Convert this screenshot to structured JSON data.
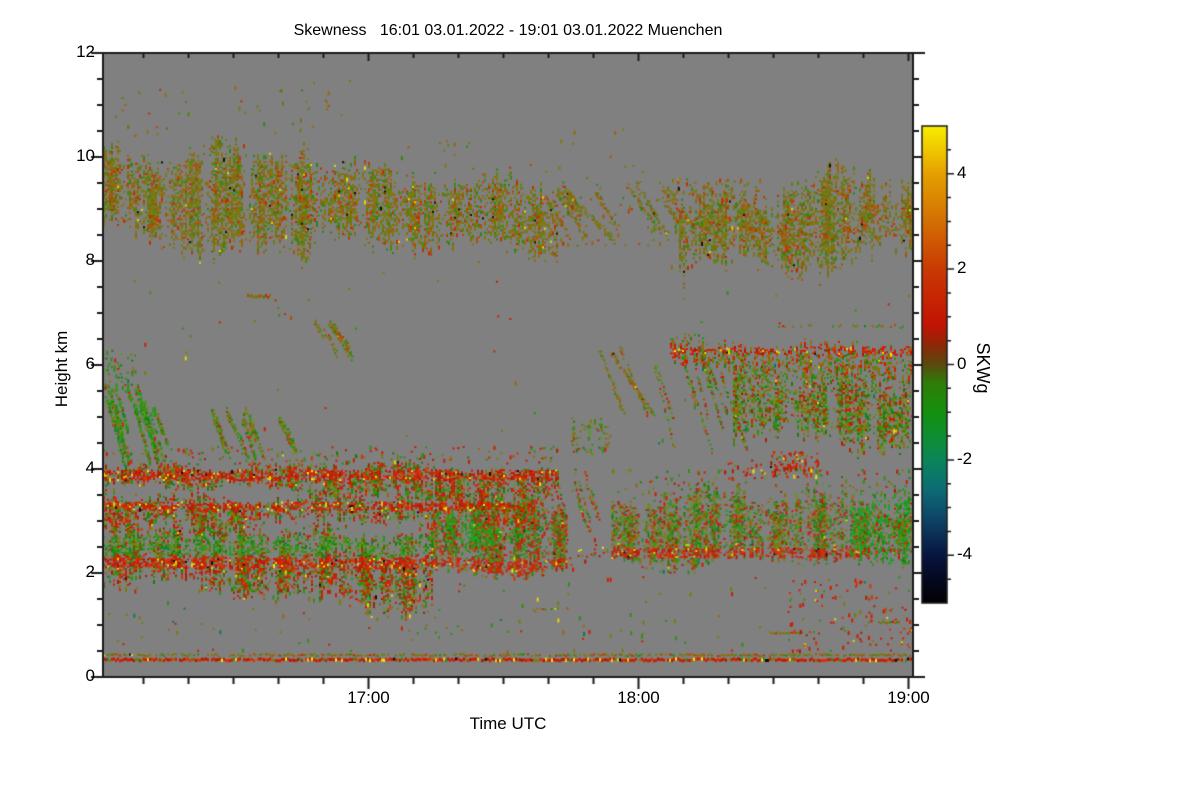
{
  "chart_data": {
    "type": "heatmap",
    "title": "Skewness   16:01 03.01.2022 - 19:01 03.01.2022 Muenchen",
    "xlabel": "Time UTC",
    "ylabel": "Height km",
    "background": "#808080",
    "frame_color": "#1c1c1c",
    "x_start": "16:01",
    "x_end": "19:01",
    "x_range_minutes": [
      0,
      180
    ],
    "x_ticks": [
      {
        "label": "17:00",
        "minutes": 59
      },
      {
        "label": "18:00",
        "minutes": 119
      },
      {
        "label": "19:00",
        "minutes": 179
      }
    ],
    "x_minor_start_min": 9,
    "x_minor_step_min": 10,
    "y_range_km": [
      0,
      12
    ],
    "y_ticks": [
      {
        "label": "0",
        "value": 0
      },
      {
        "label": "2",
        "value": 2
      },
      {
        "label": "4",
        "value": 4
      },
      {
        "label": "6",
        "value": 6
      },
      {
        "label": "8",
        "value": 8
      },
      {
        "label": "10",
        "value": 10
      },
      {
        "label": "12",
        "value": 12
      }
    ],
    "y_minor_step": 0.5,
    "colorbar": {
      "label": "SKWg",
      "range": [
        -5,
        5
      ],
      "ticks": [
        {
          "label": "4",
          "value": 4
        },
        {
          "label": "2",
          "value": 2
        },
        {
          "label": "0",
          "value": 0
        },
        {
          "label": "-2",
          "value": -2
        },
        {
          "label": "-4",
          "value": -4
        }
      ],
      "minor_step": 0.5,
      "stops": [
        [
          "#f6ee00",
          5.0
        ],
        [
          "#ecb800",
          4.3
        ],
        [
          "#e5a000",
          4.0
        ],
        [
          "#d67a04",
          3.2
        ],
        [
          "#cf5403",
          2.5
        ],
        [
          "#ca3a03",
          2.0
        ],
        [
          "#c62203",
          1.3
        ],
        [
          "#c01404",
          0.8
        ],
        [
          "#8c2808",
          0.4
        ],
        [
          "#5a4a10",
          0.0
        ],
        [
          "#2f7e08",
          -0.4
        ],
        [
          "#14900f",
          -1.0
        ],
        [
          "#0e8e38",
          -1.6
        ],
        [
          "#0b8559",
          -2.0
        ],
        [
          "#0d6d75",
          -2.6
        ],
        [
          "#0e4769",
          -3.2
        ],
        [
          "#081540",
          -4.0
        ],
        [
          "#04071a",
          -4.6
        ],
        [
          "#020203",
          -5.0
        ]
      ]
    },
    "palettes": {
      "cirrus": [
        [
          "#7d7a10",
          0.3
        ],
        [
          "#6e7414",
          0.14
        ],
        [
          "#9a660a",
          0.16
        ],
        [
          "#b04e06",
          0.1
        ],
        [
          "#c22e04",
          0.08
        ],
        [
          "#4e8a0c",
          0.1
        ],
        [
          "#2f8614",
          0.09
        ],
        [
          "#e4d400",
          0.008
        ],
        [
          "#12100a",
          0.006
        ]
      ],
      "redgreen": [
        [
          "#cc1e02",
          0.26
        ],
        [
          "#d43202",
          0.08
        ],
        [
          "#a82002",
          0.1
        ],
        [
          "#2e9012",
          0.2
        ],
        [
          "#1f7c0a",
          0.1
        ],
        [
          "#7d7a10",
          0.14
        ],
        [
          "#a85c08",
          0.07
        ],
        [
          "#e4d400",
          0.012
        ],
        [
          "#0c7a5a",
          0.008
        ],
        [
          "#12100a",
          0.004
        ],
        [
          "#57a010",
          0.026
        ]
      ],
      "redgreen2": [
        [
          "#cc1e02",
          0.16
        ],
        [
          "#a82002",
          0.06
        ],
        [
          "#2e9012",
          0.24
        ],
        [
          "#1f7c0a",
          0.12
        ],
        [
          "#57a010",
          0.08
        ],
        [
          "#7d7a10",
          0.22
        ],
        [
          "#9a660a",
          0.08
        ],
        [
          "#b04e06",
          0.03
        ],
        [
          "#e4d400",
          0.006
        ],
        [
          "#0c7a5a",
          0.008
        ]
      ],
      "green": [
        [
          "#2e9012",
          0.34
        ],
        [
          "#249e16",
          0.16
        ],
        [
          "#1f7c0a",
          0.16
        ],
        [
          "#57a010",
          0.1
        ],
        [
          "#7d7a10",
          0.12
        ],
        [
          "#cc1e02",
          0.08
        ],
        [
          "#0c7a5a",
          0.03
        ]
      ],
      "greenbright": [
        [
          "#18a01a",
          0.3
        ],
        [
          "#2e9012",
          0.3
        ],
        [
          "#0fae28",
          0.12
        ],
        [
          "#1f7c0a",
          0.12
        ],
        [
          "#7d7a10",
          0.08
        ],
        [
          "#cc1e02",
          0.06
        ]
      ],
      "greenolive": [
        [
          "#2e9012",
          0.25
        ],
        [
          "#1f7c0a",
          0.12
        ],
        [
          "#7d7a10",
          0.3
        ],
        [
          "#9a660a",
          0.12
        ],
        [
          "#cc1e02",
          0.12
        ],
        [
          "#57a010",
          0.09
        ]
      ],
      "red": [
        [
          "#cc1e02",
          0.42
        ],
        [
          "#d83402",
          0.18
        ],
        [
          "#a81c02",
          0.16
        ],
        [
          "#7d7a10",
          0.08
        ],
        [
          "#e4d400",
          0.05
        ],
        [
          "#2e9012",
          0.06
        ],
        [
          "#12100a",
          0.01
        ],
        [
          "#f0e800",
          0.02
        ]
      ],
      "redline": [
        [
          "#cc1e02",
          0.5
        ],
        [
          "#d83402",
          0.15
        ],
        [
          "#a81c02",
          0.12
        ],
        [
          "#7d7a10",
          0.09
        ],
        [
          "#e4d400",
          0.05
        ],
        [
          "#2e9012",
          0.05
        ],
        [
          "#12100a",
          0.02
        ],
        [
          "#f2ee00",
          0.02
        ]
      ],
      "cirrusred": [
        [
          "#7d7a10",
          0.25
        ],
        [
          "#9a660a",
          0.15
        ],
        [
          "#cc1e02",
          0.18
        ],
        [
          "#b04e06",
          0.1
        ],
        [
          "#2e9012",
          0.18
        ],
        [
          "#1f7c0a",
          0.08
        ],
        [
          "#e4d400",
          0.01
        ],
        [
          "#0c7a5a",
          0.01
        ]
      ],
      "mixsparse": [
        [
          "#7d7a10",
          0.35
        ],
        [
          "#2e9012",
          0.25
        ],
        [
          "#cc1e02",
          0.2
        ],
        [
          "#9a660a",
          0.1
        ],
        [
          "#0c7a5a",
          0.05
        ],
        [
          "#e4d400",
          0.05
        ]
      ],
      "redsparse": [
        [
          "#cc1e02",
          0.5
        ],
        [
          "#d83402",
          0.15
        ],
        [
          "#2e9012",
          0.12
        ],
        [
          "#7d7a10",
          0.13
        ],
        [
          "#e4d400",
          0.05
        ],
        [
          "#a81c02",
          0.05
        ]
      ]
    },
    "regions": [
      {
        "kind": "band",
        "t": [
          0,
          46
        ],
        "top": [
          10.35,
          10.15
        ],
        "bot": [
          8.5,
          8.2
        ],
        "density": 0.82,
        "palette": "cirrus",
        "wobble": 0.35,
        "feather": 0.55
      },
      {
        "kind": "band",
        "t": [
          46,
          101
        ],
        "top": [
          10.15,
          9.3
        ],
        "bot": [
          8.2,
          8.3
        ],
        "density": 0.8,
        "palette": "cirrus",
        "wobble": 0.3,
        "feather": 0.55
      },
      {
        "kind": "streaks",
        "t": [
          98,
          128
        ],
        "h": [
          8.4,
          9.5
        ],
        "count": 12,
        "len": 0.8,
        "slope": -0.12,
        "thick": 3,
        "density": 0.5,
        "palette": "cirrus"
      },
      {
        "kind": "band",
        "t": [
          128,
          180
        ],
        "top": [
          9.25,
          9.6
        ],
        "bot": [
          8.05,
          8.1
        ],
        "density": 0.85,
        "palette": "cirrus",
        "wobble": 0.45,
        "feather": 0.6
      },
      {
        "kind": "speckle",
        "t": [
          0,
          55
        ],
        "h": [
          10.3,
          11.55
        ],
        "density": 0.012,
        "palette": "cirrus"
      },
      {
        "kind": "speckle",
        "t": [
          55,
          130
        ],
        "h": [
          9.4,
          10.6
        ],
        "density": 0.006,
        "palette": "cirrus"
      },
      {
        "kind": "speckle",
        "t": [
          126,
          146
        ],
        "h": [
          8.3,
          9.6
        ],
        "density": 0.1,
        "palette": "cirrus"
      },
      {
        "kind": "speckle",
        "t": [
          101,
          126
        ],
        "h": [
          8.3,
          9.3
        ],
        "density": 0.035,
        "palette": "cirrus"
      },
      {
        "kind": "hline",
        "t": [
          32,
          37
        ],
        "h": 7.32,
        "thick": 3,
        "density": 0.9,
        "palette": "cirrus"
      },
      {
        "kind": "streaks",
        "t": [
          47,
          57
        ],
        "h": [
          6.2,
          6.9
        ],
        "count": 5,
        "len": 0.5,
        "slope": -0.15,
        "thick": 3,
        "density": 0.5,
        "palette": "cirrus"
      },
      {
        "kind": "speckle",
        "t": [
          38,
          46
        ],
        "h": [
          6.9,
          7.3
        ],
        "density": 0.03,
        "palette": "cirrus"
      },
      {
        "kind": "streaks",
        "t": [
          0,
          11
        ],
        "h": [
          3.9,
          5.6
        ],
        "count": 14,
        "len": 1.0,
        "slope": -0.28,
        "thick": 4,
        "density": 0.75,
        "palette": "green"
      },
      {
        "kind": "streaks",
        "t": [
          24,
          40
        ],
        "h": [
          4.2,
          5.2
        ],
        "count": 10,
        "len": 0.7,
        "slope": -0.22,
        "thick": 4,
        "density": 0.6,
        "palette": "greenolive"
      },
      {
        "kind": "speckle",
        "t": [
          0,
          7
        ],
        "h": [
          5.5,
          6.3
        ],
        "density": 0.15,
        "palette": "green"
      },
      {
        "kind": "band",
        "t": [
          0,
          101
        ],
        "top": [
          4.15,
          4.0
        ],
        "bot": [
          3.62,
          3.45
        ],
        "density": 0.85,
        "palette": "redgreen",
        "wobble": 0.15,
        "feather": 0.15,
        "stripes": [
          {
            "h": 3.9,
            "hw": 0.1,
            "palette": "red",
            "density": 0.95
          }
        ]
      },
      {
        "kind": "speckle",
        "t": [
          0,
          101
        ],
        "h": [
          4.1,
          4.45
        ],
        "density": 0.08,
        "palette": "redgreen"
      },
      {
        "kind": "band",
        "t": [
          0,
          96
        ],
        "top": [
          3.6,
          3.45
        ],
        "bot": [
          2.95,
          2.9
        ],
        "density": 0.78,
        "palette": "redgreen",
        "wobble": 0.2,
        "feather": 0.2,
        "stripes": [
          {
            "h": 3.3,
            "hw": 0.08,
            "palette": "red",
            "density": 0.9
          }
        ]
      },
      {
        "kind": "band",
        "t": [
          0,
          73
        ],
        "top": [
          2.98,
          2.95
        ],
        "bot": [
          1.7,
          1.45
        ],
        "density": 0.88,
        "palette": "redgreen",
        "wobble": 0.3,
        "feather": 0.35,
        "stripes": [
          {
            "h": 2.2,
            "hw": 0.1,
            "palette": "red",
            "density": 0.95
          },
          {
            "h": 2.55,
            "hw": 0.18,
            "palette": "green",
            "density": 0.5
          }
        ]
      },
      {
        "kind": "band",
        "t": [
          73,
          103
        ],
        "top": [
          3.35,
          3.3
        ],
        "bot": [
          2.0,
          2.2
        ],
        "density": 0.9,
        "palette": "redgreen",
        "wobble": 0.25,
        "feather": 0.3,
        "stripes": [
          {
            "h": 2.15,
            "hw": 0.12,
            "palette": "red",
            "density": 0.9
          }
        ]
      },
      {
        "kind": "band",
        "t": [
          76,
          94
        ],
        "top": [
          3.2,
          3.1
        ],
        "bot": [
          2.45,
          2.55
        ],
        "density": 0.8,
        "palette": "greenbright",
        "wobble": 0.2,
        "feather": 0.3
      },
      {
        "kind": "streaks",
        "t": [
          95,
          113
        ],
        "h": [
          2.6,
          4.0
        ],
        "count": 9,
        "len": 0.9,
        "slope": -0.3,
        "thick": 3,
        "density": 0.45,
        "palette": "redgreen"
      },
      {
        "kind": "band",
        "t": [
          113,
          180
        ],
        "top": [
          3.52,
          3.45
        ],
        "bot": [
          2.3,
          2.25
        ],
        "density": 0.8,
        "palette": "redgreen2",
        "wobble": 0.25,
        "feather": 0.3,
        "stripes": [
          {
            "h": 2.4,
            "hw": 0.1,
            "palette": "red",
            "density": 0.85
          }
        ]
      },
      {
        "kind": "band",
        "t": [
          166,
          180
        ],
        "top": [
          3.4,
          3.4
        ],
        "bot": [
          2.3,
          2.3
        ],
        "density": 0.55,
        "palette": "greenbright",
        "wobble": 0.2,
        "feather": 0.3
      },
      {
        "kind": "speckle",
        "t": [
          113,
          180
        ],
        "h": [
          3.5,
          4.0
        ],
        "density": 0.06,
        "palette": "redgreen2"
      },
      {
        "kind": "speckle",
        "t": [
          148,
          160
        ],
        "h": [
          3.85,
          4.35
        ],
        "density": 0.28,
        "palette": "red"
      },
      {
        "kind": "speckle",
        "t": [
          138,
          148
        ],
        "h": [
          3.8,
          4.2
        ],
        "density": 0.09,
        "palette": "red"
      },
      {
        "kind": "band",
        "t": [
          126,
          180
        ],
        "top": [
          6.55,
          6.45
        ],
        "bot": [
          6.0,
          5.6
        ],
        "density": 0.6,
        "palette": "cirrusred",
        "wobble": 0.2,
        "feather": 0.25,
        "stripes": [
          {
            "h": 6.3,
            "hw": 0.07,
            "palette": "red",
            "density": 0.65
          }
        ]
      },
      {
        "kind": "band",
        "t": [
          140,
          180
        ],
        "top": [
          6.0,
          5.9
        ],
        "bot": [
          4.5,
          4.4
        ],
        "density": 0.8,
        "palette": "redgreen2",
        "wobble": 0.3,
        "feather": 0.45
      },
      {
        "kind": "streaks",
        "t": [
          118,
          142
        ],
        "h": [
          4.3,
          6.4
        ],
        "count": 10,
        "len": 1.2,
        "slope": -0.3,
        "thick": 3,
        "density": 0.55,
        "palette": "redgreen2"
      },
      {
        "kind": "streaks",
        "t": [
          110,
          121
        ],
        "h": [
          5.0,
          6.6
        ],
        "count": 3,
        "len": 1.6,
        "slope": -0.18,
        "thick": 3,
        "density": 0.6,
        "palette": "cirrus"
      },
      {
        "kind": "speckle",
        "t": [
          104,
          113
        ],
        "h": [
          4.3,
          5.0
        ],
        "density": 0.18,
        "palette": "greenolive"
      },
      {
        "kind": "hline",
        "t": [
          150,
          178
        ],
        "h": 6.75,
        "thick": 2,
        "density": 0.3,
        "palette": "cirrusred"
      },
      {
        "kind": "speckle",
        "t": [
          103,
          112
        ],
        "h": [
          2.1,
          2.7
        ],
        "density": 0.06,
        "palette": "red"
      },
      {
        "kind": "hline",
        "t": [
          0,
          180
        ],
        "h": 0.42,
        "thick": 2,
        "density": 0.7,
        "palette": "cirrus"
      },
      {
        "kind": "hline",
        "t": [
          0,
          180
        ],
        "h": 0.33,
        "thick": 3,
        "density": 0.98,
        "palette": "redline"
      },
      {
        "kind": "speckle",
        "t": [
          0,
          180
        ],
        "h": [
          0.5,
          1.35
        ],
        "density": 0.01,
        "palette": "mixsparse"
      },
      {
        "kind": "hline",
        "t": [
          148,
          158
        ],
        "h": 0.85,
        "thick": 2,
        "density": 0.8,
        "palette": "cirrus"
      },
      {
        "kind": "hline",
        "t": [
          170,
          177
        ],
        "h": 1.05,
        "thick": 2,
        "density": 0.7,
        "palette": "cirrus"
      },
      {
        "kind": "hline",
        "t": [
          95,
          104
        ],
        "h": 1.3,
        "thick": 2,
        "density": 0.5,
        "palette": "cirrus"
      },
      {
        "kind": "speckle",
        "t": [
          152,
          180
        ],
        "h": [
          0.5,
          1.9
        ],
        "density": 0.05,
        "palette": "redsparse"
      },
      {
        "kind": "speckle",
        "t": [
          0,
          180
        ],
        "h": [
          1.4,
          2.1
        ],
        "density": 0.006,
        "palette": "mixsparse"
      },
      {
        "kind": "speckle",
        "t": [
          0,
          180
        ],
        "h": [
          4.5,
          8.0
        ],
        "density": 0.0015,
        "palette": "mixsparse"
      }
    ]
  }
}
